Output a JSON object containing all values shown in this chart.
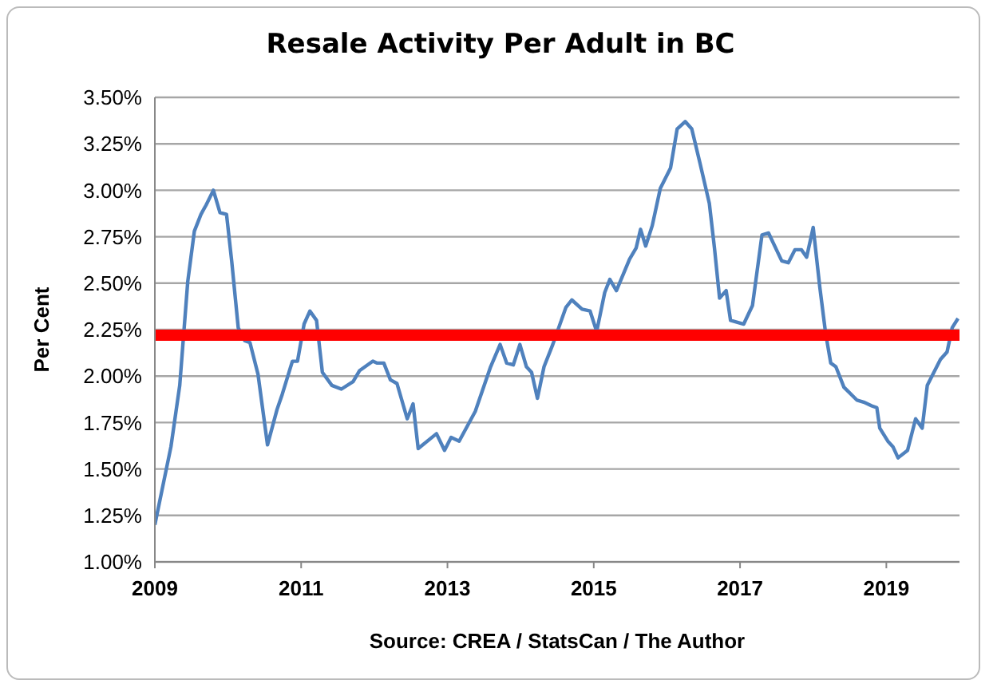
{
  "chart_data": {
    "type": "line",
    "title": "Resale Activity Per Adult in BC",
    "xlabel": "Source:  CREA  / StatsCan  / The Author",
    "ylabel": "Per Cent",
    "x": [
      2009.0,
      2009.22,
      2009.34,
      2009.45,
      2009.54,
      2009.63,
      2009.7,
      2009.8,
      2009.89,
      2009.98,
      2010.05,
      2010.14,
      2010.23,
      2010.3,
      2010.41,
      2010.54,
      2010.67,
      2010.74,
      2010.88,
      2010.95,
      2011.04,
      2011.12,
      2011.21,
      2011.29,
      2011.42,
      2011.55,
      2011.71,
      2011.8,
      2011.98,
      2012.04,
      2012.13,
      2012.22,
      2012.31,
      2012.45,
      2012.53,
      2012.6,
      2012.85,
      2012.96,
      2013.05,
      2013.16,
      2013.38,
      2013.59,
      2013.72,
      2013.81,
      2013.9,
      2013.99,
      2014.08,
      2014.15,
      2014.23,
      2014.32,
      2014.44,
      2014.62,
      2014.7,
      2014.84,
      2014.95,
      2015.04,
      2015.15,
      2015.22,
      2015.31,
      2015.49,
      2015.58,
      2015.64,
      2015.71,
      2015.8,
      2015.91,
      2016.05,
      2016.14,
      2016.25,
      2016.34,
      2016.45,
      2016.58,
      2016.65,
      2016.72,
      2016.81,
      2016.87,
      2017.05,
      2017.17,
      2017.3,
      2017.39,
      2017.57,
      2017.66,
      2017.75,
      2017.84,
      2017.91,
      2018.0,
      2018.09,
      2018.17,
      2018.24,
      2018.31,
      2018.42,
      2018.6,
      2018.69,
      2018.8,
      2018.87,
      2018.91,
      2019.02,
      2019.09,
      2019.16,
      2019.29,
      2019.4,
      2019.49,
      2019.56,
      2019.74,
      2019.83,
      2019.9,
      2019.98
    ],
    "series": [
      {
        "color": "#4f81bd",
        "values": [
          1.2,
          1.62,
          1.95,
          2.51,
          2.78,
          2.87,
          2.92,
          3.0,
          2.88,
          2.87,
          2.62,
          2.26,
          2.19,
          2.18,
          2.01,
          1.63,
          1.82,
          1.9,
          2.08,
          2.08,
          2.28,
          2.35,
          2.3,
          2.02,
          1.95,
          1.93,
          1.97,
          2.03,
          2.08,
          2.07,
          2.07,
          1.98,
          1.96,
          1.77,
          1.85,
          1.61,
          1.69,
          1.6,
          1.67,
          1.65,
          1.81,
          2.05,
          2.17,
          2.07,
          2.06,
          2.17,
          2.05,
          2.02,
          1.88,
          2.05,
          2.17,
          2.37,
          2.41,
          2.36,
          2.35,
          2.24,
          2.45,
          2.52,
          2.46,
          2.63,
          2.69,
          2.79,
          2.7,
          2.81,
          3.01,
          3.12,
          3.33,
          3.37,
          3.33,
          3.15,
          2.93,
          2.69,
          2.42,
          2.46,
          2.3,
          2.28,
          2.38,
          2.76,
          2.77,
          2.62,
          2.61,
          2.68,
          2.68,
          2.64,
          2.8,
          2.48,
          2.23,
          2.07,
          2.05,
          1.94,
          1.87,
          1.86,
          1.84,
          1.83,
          1.72,
          1.65,
          1.62,
          1.56,
          1.6,
          1.77,
          1.72,
          1.95,
          2.09,
          2.13,
          2.26,
          2.31
        ]
      }
    ],
    "xlim": [
      2009,
      2020
    ],
    "xticks": [
      2009,
      2011,
      2013,
      2015,
      2017,
      2019
    ],
    "ylim": [
      1,
      3.5
    ],
    "yticks": [
      {
        "value": 1,
        "label": "1.00%"
      },
      {
        "value": 1.25,
        "label": "1.25%"
      },
      {
        "value": 1.5,
        "label": "1.50%"
      },
      {
        "value": 1.75,
        "label": "1.75%"
      },
      {
        "value": 2,
        "label": "2.00%"
      },
      {
        "value": 2.25,
        "label": "2.25%"
      },
      {
        "value": 2.5,
        "label": "2.50%"
      },
      {
        "value": 2.75,
        "label": "2.75%"
      },
      {
        "value": 3,
        "label": "3.00%"
      },
      {
        "value": 3.25,
        "label": "3.25%"
      },
      {
        "value": 3.5,
        "label": "3.50%"
      }
    ],
    "ref_lines": [
      {
        "axis": "y",
        "value": 2.22,
        "color": "#ff0000"
      }
    ],
    "grid": "y",
    "marker": "none",
    "line_style": "solid"
  }
}
